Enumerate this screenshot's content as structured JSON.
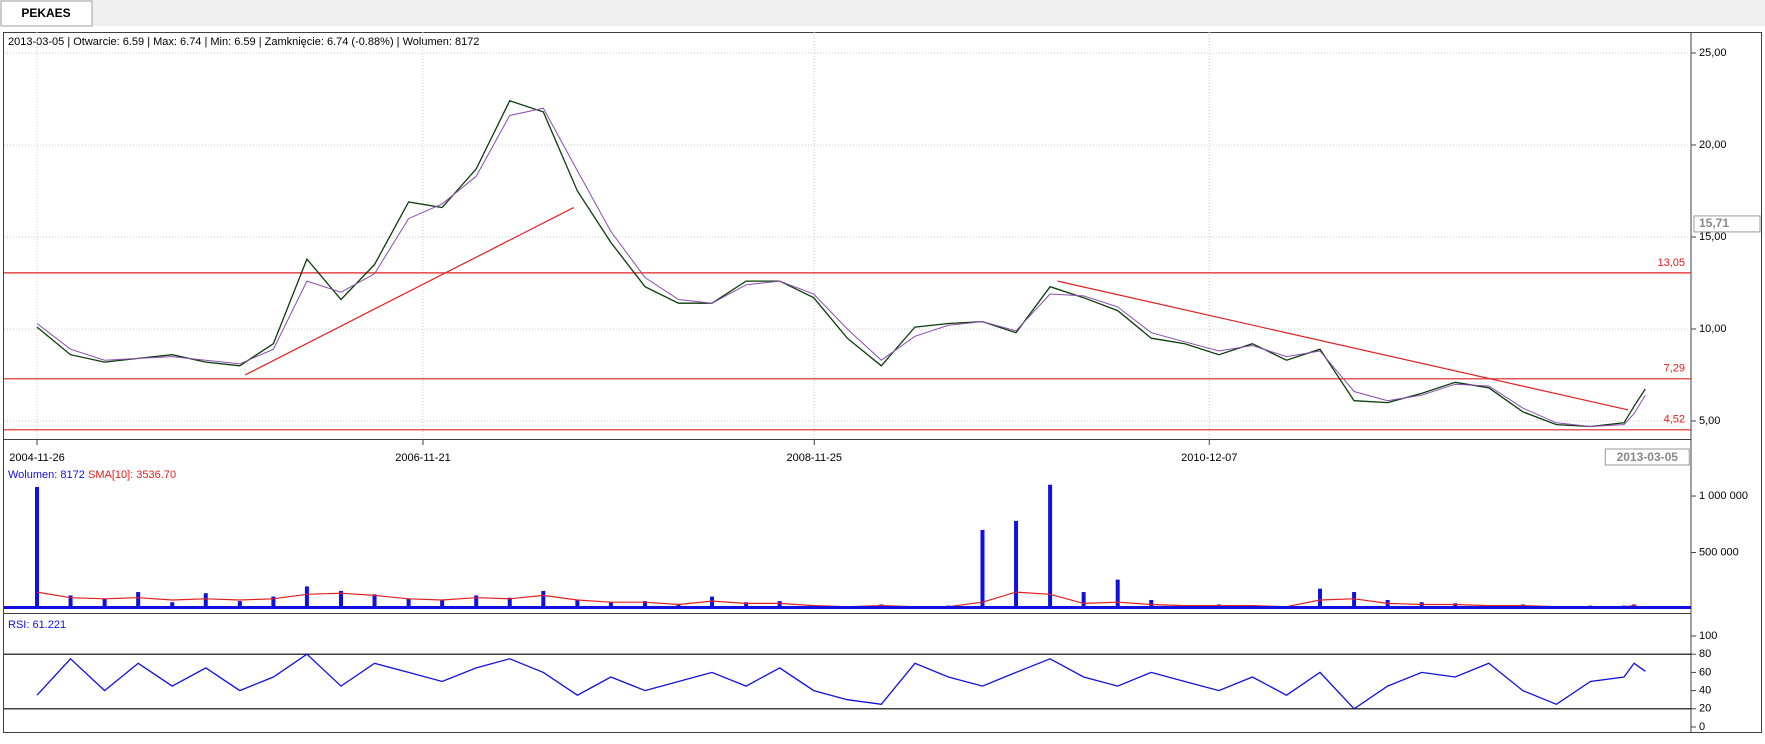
{
  "tab": "PEKAES",
  "chart_data": [
    {
      "type": "line",
      "info": "2013-03-05 | Otwarcie: 6.59 | Max: 6.74 | Min: 6.59 | Zamknięcie: 6.74 (-0.88%) | Wolumen: 8172",
      "x": [
        "2004-11-26",
        "2005-01-28",
        "2005-04-02",
        "2005-06-04",
        "2005-08-07",
        "2005-10-09",
        "2005-12-12",
        "2006-02-13",
        "2006-04-17",
        "2006-06-20",
        "2006-08-22",
        "2006-10-25",
        "2006-12-27",
        "2007-03-01",
        "2007-05-03",
        "2007-07-05",
        "2007-09-07",
        "2007-11-09",
        "2008-01-12",
        "2008-03-15",
        "2008-05-17",
        "2008-07-20",
        "2008-09-21",
        "2008-11-24",
        "2009-01-26",
        "2009-03-31",
        "2009-06-02",
        "2009-08-04",
        "2009-10-07",
        "2009-12-09",
        "2010-02-11",
        "2010-04-15",
        "2010-06-18",
        "2010-08-20",
        "2010-10-22",
        "2010-12-25",
        "2011-02-26",
        "2011-05-01",
        "2011-07-03",
        "2011-09-05",
        "2011-11-07",
        "2012-01-10",
        "2012-03-13",
        "2012-05-15",
        "2012-07-18",
        "2012-09-19",
        "2012-11-22",
        "2013-01-24",
        "2013-02-12",
        "2013-03-05"
      ],
      "series": [
        {
          "color": "#0a3d0a",
          "values": [
            10.1,
            8.6,
            8.2,
            8.4,
            8.6,
            8.2,
            8.0,
            9.2,
            13.8,
            11.6,
            13.5,
            16.9,
            16.6,
            18.7,
            22.4,
            21.8,
            17.5,
            14.7,
            12.3,
            11.4,
            11.4,
            12.6,
            12.6,
            11.7,
            9.5,
            8.0,
            10.1,
            10.3,
            10.4,
            9.8,
            12.3,
            11.7,
            11.0,
            9.5,
            9.2,
            8.6,
            9.2,
            8.3,
            8.9,
            6.1,
            6.0,
            6.5,
            7.1,
            6.8,
            5.5,
            4.8,
            4.7,
            4.9,
            5.8,
            6.74
          ]
        },
        {
          "color": "#8a4cb0",
          "values": [
            10.3,
            8.9,
            8.3,
            8.4,
            8.5,
            8.3,
            8.1,
            8.9,
            12.6,
            12.0,
            13.0,
            16.0,
            16.8,
            18.3,
            21.6,
            22.0,
            18.6,
            15.3,
            12.8,
            11.6,
            11.4,
            12.4,
            12.6,
            11.9,
            10.0,
            8.3,
            9.6,
            10.2,
            10.4,
            9.9,
            11.9,
            11.8,
            11.2,
            9.8,
            9.3,
            8.8,
            9.1,
            8.5,
            8.8,
            6.6,
            6.1,
            6.4,
            7.0,
            6.9,
            5.7,
            4.9,
            4.7,
            4.8,
            5.4,
            6.4
          ]
        }
      ],
      "xlim": [
        "2004-09-25",
        "2013-05-28"
      ],
      "xticks": [
        "2004-11-26",
        "2006-11-21",
        "2008-11-25",
        "2010-12-07"
      ],
      "x_marker": "2013-03-05",
      "ylim": [
        4.02,
        26.14
      ],
      "yticks": [
        {
          "value": 5,
          "label": "5,00"
        },
        {
          "value": 10,
          "label": "10,00"
        },
        {
          "value": 15,
          "label": "15,00"
        },
        {
          "value": 20,
          "label": "20,00"
        },
        {
          "value": 25,
          "label": "25,00"
        }
      ],
      "cursor_value": {
        "value": 15.71,
        "label": "15,71"
      },
      "hlines": [
        {
          "value": 13.05,
          "label": "13,05"
        },
        {
          "value": 7.29,
          "label": "7,29"
        },
        {
          "value": 4.52,
          "label": "4,52"
        }
      ],
      "trendlines": [
        {
          "x": [
            "2005-12-22",
            "2007-08-31"
          ],
          "values": [
            7.5,
            16.6
          ]
        },
        {
          "x": [
            "2010-02-25",
            "2013-02-01"
          ],
          "values": [
            12.6,
            5.6
          ]
        }
      ],
      "line_color": "#e02020",
      "grid": true
    },
    {
      "type": "bar",
      "label": "Wolumen: 8172",
      "sma_label": "SMA[10]: 3536.70",
      "x": [
        "2004-11-26",
        "2005-01-28",
        "2005-04-02",
        "2005-06-04",
        "2005-08-07",
        "2005-10-09",
        "2005-12-12",
        "2006-02-13",
        "2006-04-17",
        "2006-06-20",
        "2006-08-22",
        "2006-10-25",
        "2006-12-27",
        "2007-03-01",
        "2007-05-03",
        "2007-07-05",
        "2007-09-07",
        "2007-11-09",
        "2008-01-12",
        "2008-03-15",
        "2008-05-17",
        "2008-07-20",
        "2008-09-21",
        "2008-11-24",
        "2009-01-26",
        "2009-03-31",
        "2009-06-02",
        "2009-08-04",
        "2009-10-07",
        "2009-12-09",
        "2010-02-11",
        "2010-04-15",
        "2010-06-18",
        "2010-08-20",
        "2010-10-22",
        "2010-12-25",
        "2011-02-26",
        "2011-05-01",
        "2011-07-03",
        "2011-09-05",
        "2011-11-07",
        "2012-01-10",
        "2012-03-13",
        "2012-05-15",
        "2012-07-18",
        "2012-09-19",
        "2012-11-22",
        "2013-01-24",
        "2013-02-12",
        "2013-03-05"
      ],
      "values": [
        1080000,
        120000,
        90000,
        150000,
        60000,
        140000,
        70000,
        110000,
        200000,
        160000,
        130000,
        90000,
        80000,
        120000,
        100000,
        160000,
        80000,
        60000,
        70000,
        40000,
        110000,
        60000,
        70000,
        30000,
        20000,
        40000,
        20000,
        30000,
        700000,
        780000,
        1100000,
        150000,
        260000,
        80000,
        30000,
        40000,
        30000,
        20000,
        180000,
        150000,
        80000,
        60000,
        50000,
        30000,
        40000,
        20000,
        30000,
        30000,
        40000,
        8172
      ],
      "color": "#1010e0",
      "sma": [
        150000,
        100000,
        90000,
        100000,
        80000,
        90000,
        80000,
        90000,
        130000,
        140000,
        120000,
        90000,
        80000,
        100000,
        90000,
        120000,
        80000,
        60000,
        60000,
        40000,
        70000,
        50000,
        50000,
        30000,
        20000,
        30000,
        20000,
        20000,
        60000,
        150000,
        130000,
        50000,
        60000,
        40000,
        30000,
        30000,
        30000,
        20000,
        80000,
        90000,
        50000,
        40000,
        40000,
        30000,
        30000,
        20000,
        20000,
        20000,
        30000,
        3536.7
      ],
      "sma_color": "#e02020",
      "xlim": [
        "2004-09-25",
        "2013-05-28"
      ],
      "ylim": [
        0,
        1257000
      ],
      "yticks": [
        {
          "value": 500000,
          "label": "500 000"
        },
        {
          "value": 1000000,
          "label": "1 000 000"
        }
      ]
    },
    {
      "type": "line",
      "label": "RSI: 61.221",
      "x": [
        "2004-11-26",
        "2005-01-28",
        "2005-04-02",
        "2005-06-04",
        "2005-08-07",
        "2005-10-09",
        "2005-12-12",
        "2006-02-13",
        "2006-04-17",
        "2006-06-20",
        "2006-08-22",
        "2006-10-25",
        "2006-12-27",
        "2007-03-01",
        "2007-05-03",
        "2007-07-05",
        "2007-09-07",
        "2007-11-09",
        "2008-01-12",
        "2008-03-15",
        "2008-05-17",
        "2008-07-20",
        "2008-09-21",
        "2008-11-24",
        "2009-01-26",
        "2009-03-31",
        "2009-06-02",
        "2009-08-04",
        "2009-10-07",
        "2009-12-09",
        "2010-02-11",
        "2010-04-15",
        "2010-06-18",
        "2010-08-20",
        "2010-10-22",
        "2010-12-25",
        "2011-02-26",
        "2011-05-01",
        "2011-07-03",
        "2011-09-05",
        "2011-11-07",
        "2012-01-10",
        "2012-03-13",
        "2012-05-15",
        "2012-07-18",
        "2012-09-19",
        "2012-11-22",
        "2013-01-24",
        "2013-02-12",
        "2013-03-05"
      ],
      "series": [
        {
          "color": "#1010e0",
          "values": [
            35,
            75,
            40,
            70,
            45,
            65,
            40,
            55,
            80,
            45,
            70,
            60,
            50,
            65,
            75,
            60,
            35,
            55,
            40,
            50,
            60,
            45,
            65,
            40,
            30,
            25,
            70,
            55,
            45,
            60,
            75,
            55,
            45,
            60,
            50,
            40,
            55,
            35,
            60,
            20,
            45,
            60,
            55,
            70,
            40,
            25,
            50,
            55,
            70,
            61.221
          ]
        }
      ],
      "xlim": [
        "2004-09-25",
        "2013-05-28"
      ],
      "ylim": [
        -5.5,
        120.9
      ],
      "yticks": [
        0,
        20,
        40,
        60,
        80,
        100
      ],
      "hlines": [
        {
          "value": 20
        },
        {
          "value": 80
        }
      ],
      "line_color": "#000000"
    }
  ]
}
